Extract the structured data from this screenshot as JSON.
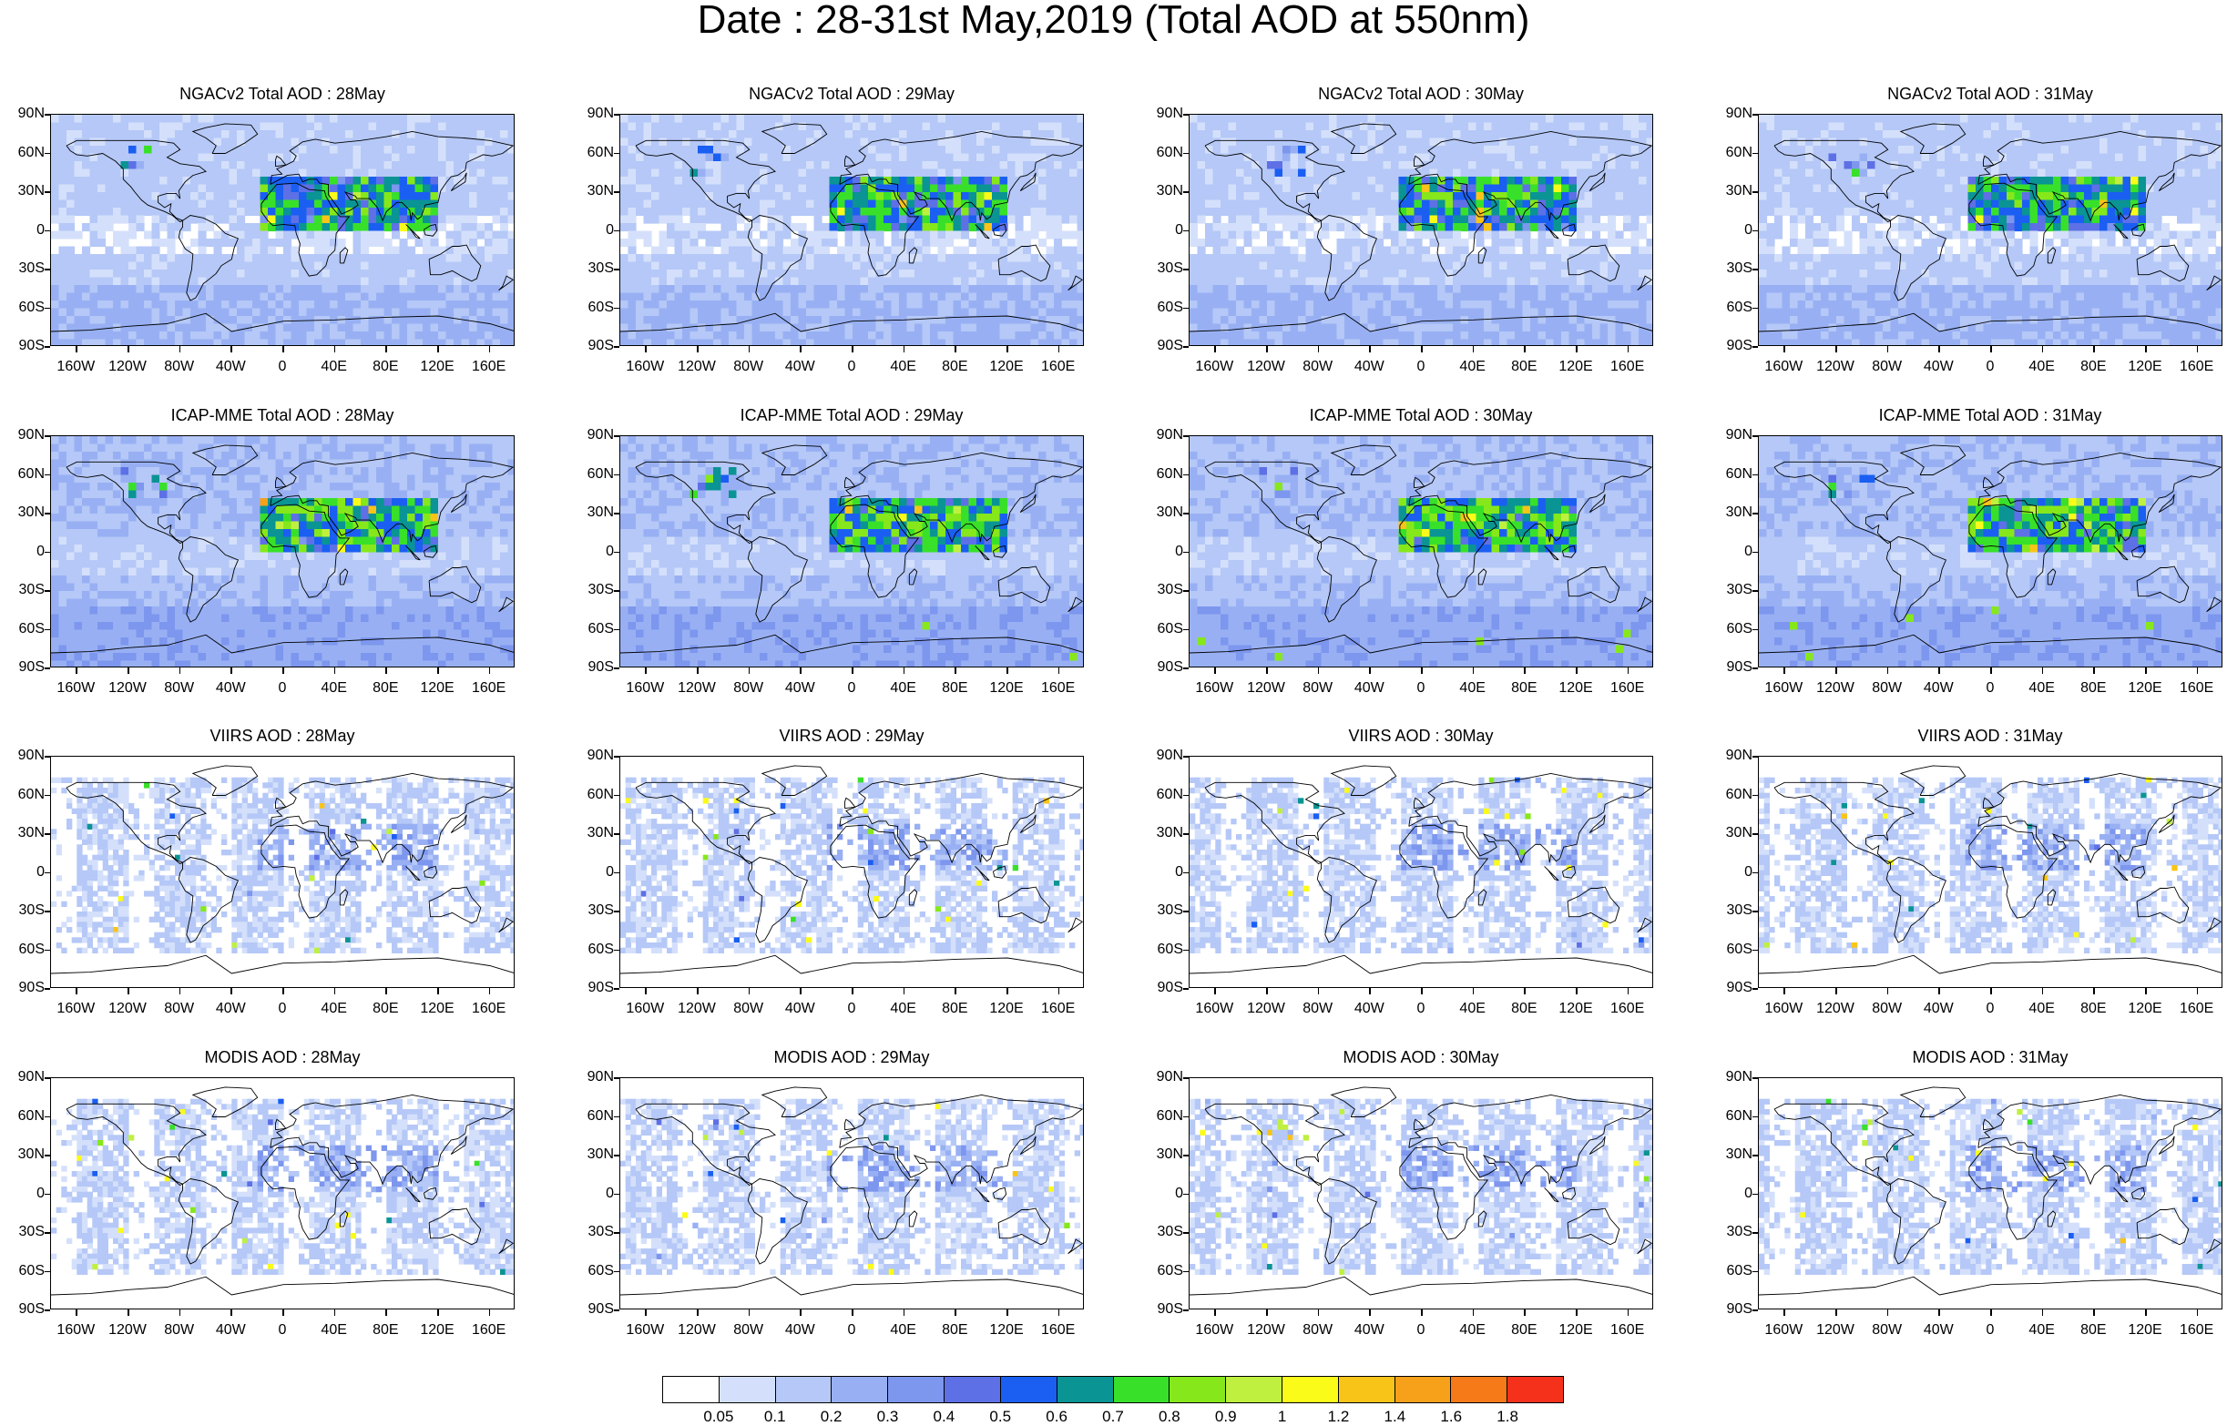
{
  "title": "Date : 28-31st May,2019 (Total AOD at 550nm)",
  "lat_ticks": [
    "90N",
    "60N",
    "30N",
    "0",
    "30S",
    "60S",
    "90S"
  ],
  "lon_ticks": [
    "160W",
    "120W",
    "80W",
    "40W",
    "0",
    "40E",
    "80E",
    "120E",
    "160E"
  ],
  "rows": [
    {
      "style": "model",
      "panels": [
        "NGACv2 Total AOD : 28May",
        "NGACv2 Total AOD : 29May",
        "NGACv2 Total AOD : 30May",
        "NGACv2 Total AOD : 31May"
      ]
    },
    {
      "style": "model",
      "panels": [
        "ICAP-MME Total AOD : 28May",
        "ICAP-MME Total AOD : 29May",
        "ICAP-MME Total AOD : 30May",
        "ICAP-MME Total AOD : 31May"
      ]
    },
    {
      "style": "sat",
      "panels": [
        "VIIRS AOD : 28May",
        "VIIRS AOD : 29May",
        "VIIRS AOD : 30May",
        "VIIRS AOD : 31May"
      ]
    },
    {
      "style": "sat",
      "panels": [
        "MODIS AOD : 28May",
        "MODIS AOD : 29May",
        "MODIS AOD : 30May",
        "MODIS AOD : 31May"
      ]
    }
  ],
  "colorbar": {
    "colors": [
      "#ffffff",
      "#d4e0fb",
      "#b5c8f7",
      "#98b0f3",
      "#7d96ee",
      "#5e70e6",
      "#1a5ff2",
      "#0a9494",
      "#39e02a",
      "#86e81a",
      "#bff040",
      "#fbfb1a",
      "#f9c418",
      "#f7a019",
      "#f67a17",
      "#f6311b"
    ],
    "labels": [
      "0.05",
      "0.1",
      "0.2",
      "0.3",
      "0.4",
      "0.5",
      "0.6",
      "0.7",
      "0.8",
      "0.9",
      "1",
      "1.2",
      "1.4",
      "1.6",
      "1.8"
    ]
  }
}
